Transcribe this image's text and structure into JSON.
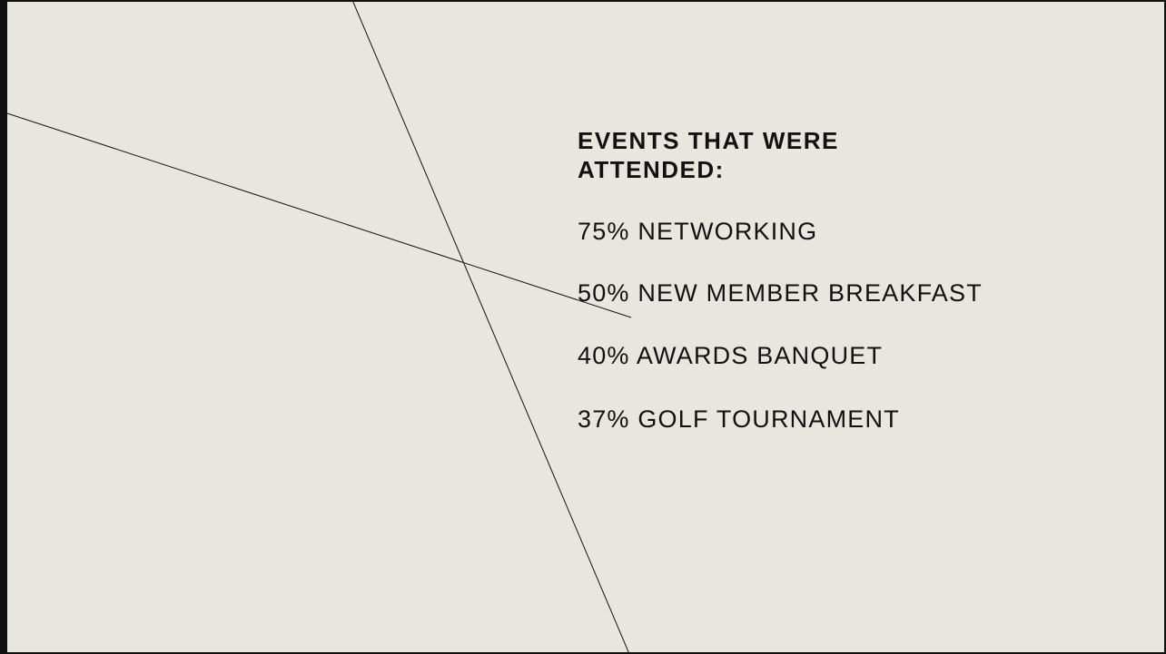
{
  "slide": {
    "title": "EVENTS THAT WERE ATTENDED:",
    "items": [
      "75% NETWORKING",
      "50% NEW MEMBER BREAKFAST",
      "40% AWARDS BANQUET",
      "37% GOLF TOURNAMENT"
    ]
  }
}
